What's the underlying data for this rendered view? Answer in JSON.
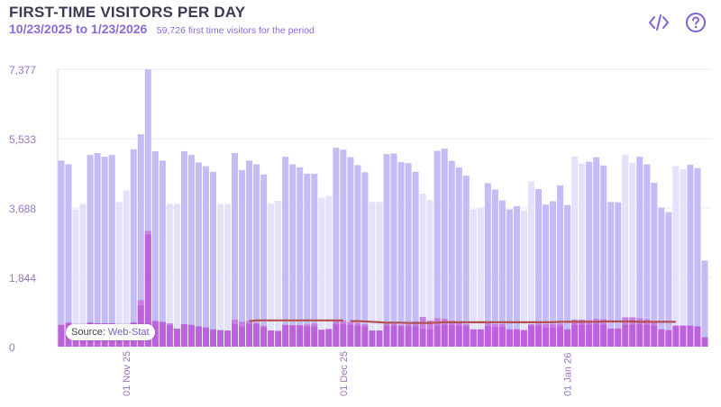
{
  "header": {
    "title": "FIRST-TIME VISITORS PER DAY",
    "date_range": "10/23/2025 to 1/23/2026",
    "summary": "59,726 first time visitors for the period"
  },
  "source": {
    "label": "Source:",
    "link": "Web-Stat"
  },
  "icons": {
    "embed": "code-icon",
    "help": "help-icon"
  },
  "colors": {
    "weekday_bar": "#c4bcf6",
    "weekend_bar": "#e4e1fa",
    "returning_bar": "#c77ee6",
    "first_time_bar": "#b54ad6",
    "trend_line": "#b4514e",
    "axis_text": "#9a74c2"
  },
  "chart_data": {
    "type": "bar",
    "title": "FIRST-TIME VISITORS PER DAY",
    "xlabel": "",
    "ylabel": "",
    "ylim": [
      0,
      7377
    ],
    "yticks": [
      "0",
      "1,844",
      "3,688",
      "5,533",
      "7,377"
    ],
    "ytick_values": [
      0,
      1844,
      3688,
      5533,
      7377
    ],
    "xticks": [
      {
        "label": "01 Nov 25",
        "index": 9
      },
      {
        "label": "01 Dec 25",
        "index": 39
      },
      {
        "label": "01 Jan 26",
        "index": 70
      }
    ],
    "grid": true,
    "series": [
      {
        "name": "",
        "values": [
          4950,
          4850,
          3650,
          3800,
          5100,
          5150,
          5050,
          5100,
          3850,
          4150,
          5250,
          5650,
          7377,
          5200,
          4950,
          3800,
          3800,
          5200,
          5100,
          4900,
          4800,
          4650,
          3800,
          3800,
          5150,
          4700,
          4950,
          4850,
          4580,
          3810,
          3880,
          5050,
          4850,
          4770,
          4600,
          4600,
          3960,
          4010,
          5290,
          5240,
          5040,
          4830,
          4640,
          3850,
          3850,
          5120,
          5140,
          4910,
          4880,
          4650,
          4070,
          3900,
          5210,
          5270,
          4940,
          4770,
          4550,
          3650,
          3700,
          4350,
          4180,
          3890,
          3650,
          3740,
          3620,
          4400,
          4190,
          3780,
          3870,
          4290,
          3770,
          5060,
          4870,
          4920,
          5040,
          4820,
          3850,
          3840,
          5110,
          4890,
          5050,
          4850,
          4360,
          3700,
          3580,
          4800,
          4720,
          4840,
          4750,
          2290
        ]
      },
      {
        "name": "",
        "values": [
          580,
          640,
          520,
          560,
          640,
          620,
          620,
          620,
          490,
          540,
          640,
          1100,
          2980,
          680,
          660,
          570,
          480,
          600,
          580,
          540,
          510,
          460,
          440,
          430,
          600,
          540,
          610,
          600,
          520,
          430,
          420,
          580,
          570,
          570,
          540,
          540,
          450,
          470,
          600,
          600,
          580,
          560,
          540,
          430,
          430,
          560,
          560,
          540,
          540,
          540,
          470,
          460,
          560,
          590,
          570,
          560,
          540,
          460,
          460,
          540,
          520,
          520,
          460,
          460,
          440,
          560,
          560,
          500,
          500,
          540,
          460,
          580,
          580,
          580,
          600,
          580,
          480,
          480,
          580,
          580,
          600,
          580,
          560,
          460,
          440,
          560,
          560,
          560,
          540,
          250
        ]
      },
      {
        "name": "",
        "values": [
          580,
          640,
          320,
          560,
          640,
          620,
          620,
          620,
          490,
          540,
          640,
          1240,
          3080,
          680,
          660,
          620,
          480,
          600,
          580,
          540,
          510,
          460,
          440,
          430,
          720,
          660,
          690,
          640,
          560,
          430,
          420,
          580,
          570,
          570,
          590,
          620,
          450,
          470,
          700,
          690,
          660,
          630,
          600,
          430,
          430,
          610,
          640,
          580,
          600,
          670,
          790,
          690,
          760,
          740,
          690,
          640,
          600,
          460,
          460,
          620,
          600,
          600,
          460,
          460,
          440,
          600,
          610,
          600,
          600,
          610,
          460,
          720,
          720,
          700,
          740,
          730,
          480,
          480,
          780,
          780,
          760,
          730,
          680,
          460,
          440,
          560,
          560,
          560,
          540,
          250
        ]
      },
      {
        "name": "",
        "values": [
          null,
          null,
          null,
          null,
          null,
          null,
          null,
          null,
          null,
          null,
          null,
          null,
          null,
          null,
          null,
          null,
          null,
          null,
          null,
          null,
          null,
          null,
          null,
          null,
          null,
          null,
          null,
          null,
          null,
          null,
          null,
          null,
          null,
          null,
          null,
          null,
          null,
          null,
          null,
          null,
          680,
          680,
          670,
          660,
          650,
          640,
          640,
          640,
          630,
          630,
          630,
          630,
          640,
          650,
          650,
          650,
          650,
          650,
          650,
          650,
          650,
          650,
          650,
          650,
          650,
          650,
          650,
          650,
          650,
          660,
          660,
          660,
          660,
          660,
          660,
          670,
          670,
          670,
          670,
          670,
          660,
          660,
          660,
          660,
          660,
          660
        ]
      },
      {
        "name": "",
        "values": [
          null,
          null,
          null,
          null,
          null,
          null,
          null,
          null,
          null,
          null,
          null,
          null,
          null,
          null,
          null,
          null,
          null,
          null,
          null,
          null,
          null,
          null,
          null,
          null,
          null,
          null,
          680,
          700,
          700,
          700,
          700,
          700,
          700,
          700,
          700,
          700,
          700,
          700,
          700,
          700
        ]
      }
    ],
    "weekend_days": [
      2,
      3,
      8,
      9,
      15,
      16,
      22,
      23,
      29,
      30,
      36,
      37,
      43,
      44,
      50,
      51,
      57,
      58,
      64,
      65,
      71,
      72,
      78,
      79,
      85,
      86
    ]
  }
}
